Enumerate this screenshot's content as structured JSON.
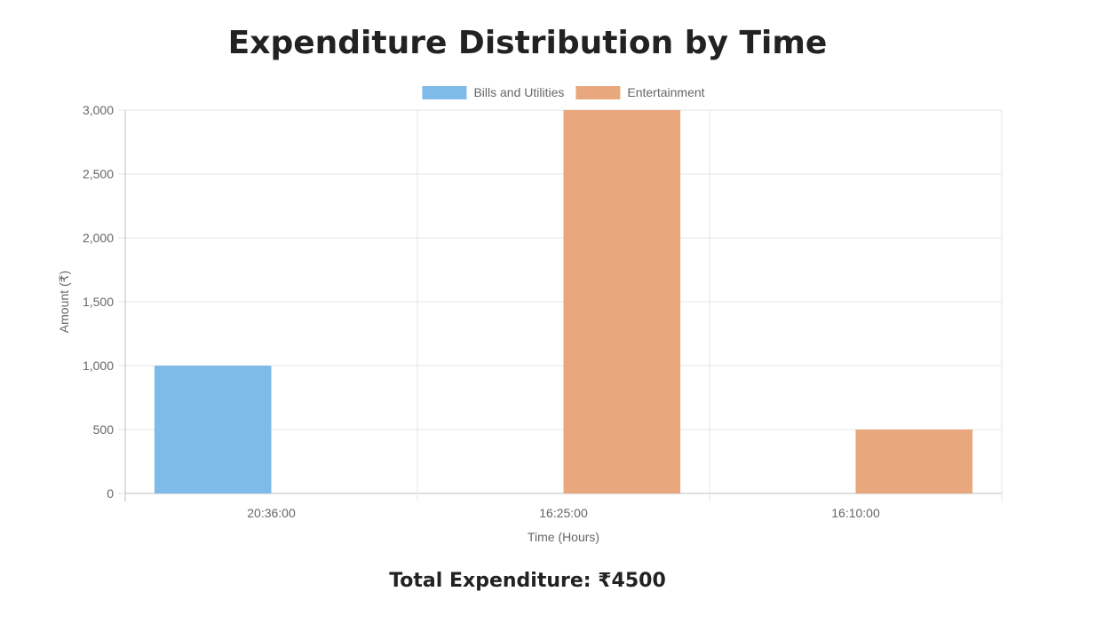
{
  "page": {
    "title": "Expenditure Distribution by Time",
    "total_label": "Total Expenditure: ₹4500"
  },
  "chart_data": {
    "type": "bar",
    "categories": [
      "20:36:00",
      "16:25:00",
      "16:10:00"
    ],
    "series": [
      {
        "name": "Bills and Utilities",
        "color": "#7fbbe9",
        "values": [
          1000,
          0,
          0
        ]
      },
      {
        "name": "Entertainment",
        "color": "#e8a77d",
        "values": [
          0,
          3000,
          500
        ]
      }
    ],
    "xlabel": "Time (Hours)",
    "ylabel": "Amount (₹)",
    "ylim": [
      0,
      3000
    ],
    "yticks": [
      0,
      500,
      1000,
      1500,
      2000,
      2500,
      3000
    ],
    "ytick_labels": [
      "0",
      "500",
      "1,000",
      "1,500",
      "2,000",
      "2,500",
      "3,000"
    ],
    "grid": true,
    "legend": "top-center"
  }
}
